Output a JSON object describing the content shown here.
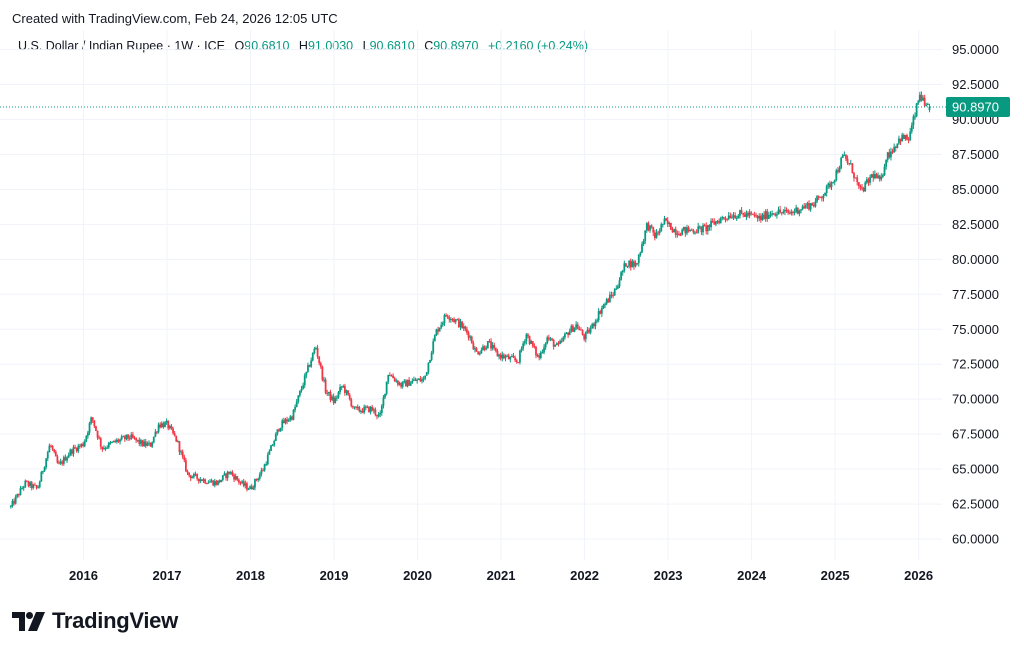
{
  "header": {
    "created_text": "Created with TradingView.com, Feb 24, 2026 12:05 UTC"
  },
  "legend": {
    "symbol": "U.S. Dollar / Indian Rupee · 1W · ICE",
    "open_label": "O",
    "open": "90.6810",
    "high_label": "H",
    "high": "91.0030",
    "low_label": "L",
    "low": "90.6810",
    "close_label": "C",
    "close": "90.8970",
    "change": "+0.2160 (+0.24%)"
  },
  "brand": {
    "name": "TradingView"
  },
  "colors": {
    "up": "#089981",
    "down": "#f23645",
    "grid": "#f0f3fa",
    "text": "#131722"
  },
  "chart_data": {
    "type": "candlestick",
    "title": "U.S. Dollar / Indian Rupee · 1W · ICE",
    "interval": "1W",
    "last_price_label": "90.8970",
    "last_price": 90.897,
    "ylim": [
      58.5,
      96.4
    ],
    "yticks": [
      "95.0000",
      "92.5000",
      "90.0000",
      "87.5000",
      "85.0000",
      "82.5000",
      "80.0000",
      "77.5000",
      "75.0000",
      "72.5000",
      "70.0000",
      "67.5000",
      "65.0000",
      "62.5000",
      "60.0000"
    ],
    "xlim": [
      2015.12,
      2026.28
    ],
    "xticks": [
      "2016",
      "2017",
      "2018",
      "2019",
      "2020",
      "2021",
      "2022",
      "2023",
      "2024",
      "2025",
      "2026"
    ],
    "xtick_values": [
      2016,
      2017,
      2018,
      2019,
      2020,
      2021,
      2022,
      2023,
      2024,
      2025,
      2026
    ],
    "price_path_approx": [
      [
        2015.13,
        62.3
      ],
      [
        2015.3,
        64.0
      ],
      [
        2015.45,
        63.6
      ],
      [
        2015.6,
        66.8
      ],
      [
        2015.7,
        65.2
      ],
      [
        2015.85,
        66.3
      ],
      [
        2016.0,
        66.8
      ],
      [
        2016.1,
        68.7
      ],
      [
        2016.22,
        66.5
      ],
      [
        2016.4,
        67.0
      ],
      [
        2016.55,
        67.3
      ],
      [
        2016.7,
        66.8
      ],
      [
        2016.8,
        66.7
      ],
      [
        2016.9,
        68.2
      ],
      [
        2017.0,
        68.2
      ],
      [
        2017.12,
        67.0
      ],
      [
        2017.25,
        64.6
      ],
      [
        2017.45,
        64.2
      ],
      [
        2017.6,
        64.0
      ],
      [
        2017.75,
        64.8
      ],
      [
        2017.9,
        63.9
      ],
      [
        2018.0,
        63.6
      ],
      [
        2018.15,
        65.0
      ],
      [
        2018.35,
        68.1
      ],
      [
        2018.5,
        68.8
      ],
      [
        2018.65,
        71.5
      ],
      [
        2018.78,
        73.8
      ],
      [
        2018.9,
        70.6
      ],
      [
        2019.0,
        69.8
      ],
      [
        2019.1,
        71.0
      ],
      [
        2019.25,
        69.2
      ],
      [
        2019.45,
        69.3
      ],
      [
        2019.55,
        68.7
      ],
      [
        2019.65,
        71.9
      ],
      [
        2019.8,
        71.0
      ],
      [
        2019.95,
        71.3
      ],
      [
        2020.08,
        71.4
      ],
      [
        2020.22,
        74.8
      ],
      [
        2020.35,
        76.1
      ],
      [
        2020.5,
        75.4
      ],
      [
        2020.62,
        74.6
      ],
      [
        2020.7,
        73.3
      ],
      [
        2020.85,
        74.0
      ],
      [
        2020.95,
        73.2
      ],
      [
        2021.1,
        72.9
      ],
      [
        2021.2,
        72.7
      ],
      [
        2021.3,
        74.7
      ],
      [
        2021.45,
        72.9
      ],
      [
        2021.55,
        74.4
      ],
      [
        2021.68,
        73.7
      ],
      [
        2021.8,
        74.8
      ],
      [
        2021.9,
        75.3
      ],
      [
        2022.0,
        74.4
      ],
      [
        2022.1,
        75.3
      ],
      [
        2022.2,
        76.5
      ],
      [
        2022.35,
        77.6
      ],
      [
        2022.5,
        79.8
      ],
      [
        2022.62,
        79.6
      ],
      [
        2022.75,
        82.5
      ],
      [
        2022.85,
        81.6
      ],
      [
        2022.95,
        82.7
      ],
      [
        2023.1,
        82.0
      ],
      [
        2023.3,
        82.1
      ],
      [
        2023.45,
        82.2
      ],
      [
        2023.6,
        82.8
      ],
      [
        2023.75,
        83.2
      ],
      [
        2023.95,
        83.2
      ],
      [
        2024.1,
        82.9
      ],
      [
        2024.25,
        83.4
      ],
      [
        2024.45,
        83.3
      ],
      [
        2024.6,
        83.7
      ],
      [
        2024.75,
        84.0
      ],
      [
        2024.9,
        85.0
      ],
      [
        2025.0,
        86.0
      ],
      [
        2025.1,
        87.4
      ],
      [
        2025.2,
        86.5
      ],
      [
        2025.3,
        84.8
      ],
      [
        2025.38,
        85.4
      ],
      [
        2025.45,
        86.1
      ],
      [
        2025.55,
        85.5
      ],
      [
        2025.6,
        87.2
      ],
      [
        2025.7,
        88.0
      ],
      [
        2025.78,
        88.7
      ],
      [
        2025.88,
        88.6
      ],
      [
        2025.95,
        90.2
      ],
      [
        2026.02,
        91.9
      ],
      [
        2026.08,
        90.7
      ],
      [
        2026.14,
        90.9
      ]
    ]
  }
}
